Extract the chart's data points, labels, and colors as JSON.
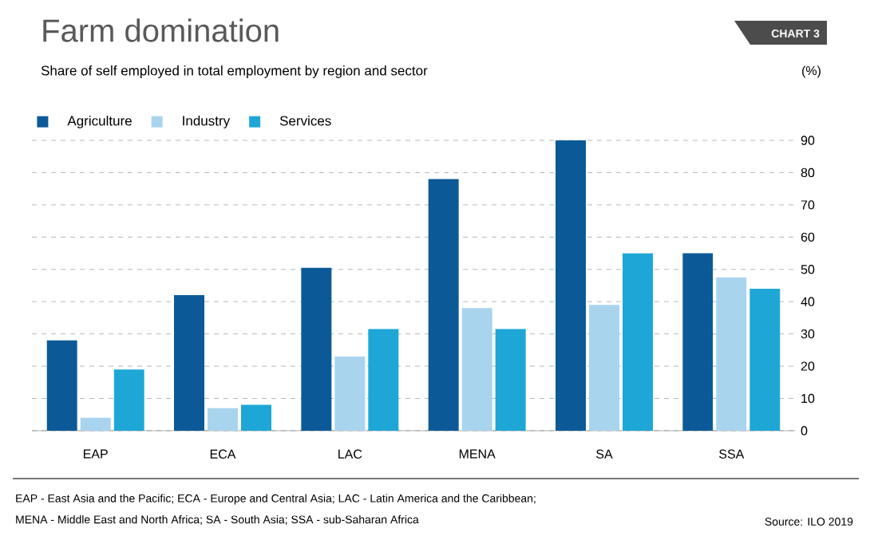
{
  "chart_data": {
    "type": "bar",
    "title": "Farm domination",
    "subtitle": "Share of self employed in total employment by region and sector",
    "ylabel": "(%)",
    "categories": [
      "EAP",
      "ECA",
      "LAC",
      "MENA",
      "SA",
      "SSA"
    ],
    "series": [
      {
        "name": "Agriculture",
        "color": "#0b5a97",
        "values": [
          28,
          42,
          50.5,
          78,
          90,
          55
        ]
      },
      {
        "name": "Industry",
        "color": "#a9d4ee",
        "values": [
          4,
          7,
          23,
          38,
          39,
          47.5
        ]
      },
      {
        "name": "Services",
        "color": "#1ea7d6",
        "values": [
          19,
          8,
          31.5,
          31.5,
          55,
          44
        ]
      }
    ],
    "ylim": [
      0,
      90
    ],
    "yticks": [
      0,
      10,
      20,
      30,
      40,
      50,
      60,
      70,
      80,
      90
    ],
    "grid": "y",
    "legend": "top left",
    "annotations": [
      "CHART 3",
      "EAP - East Asia and the Pacific; ECA - Europe and Central Asia; LAC - Latin America and the Caribbean;",
      "MENA - Middle East and North Africa; SA - South Asia; SSA - sub-Saharan Africa",
      "Source: ILO 2019"
    ]
  }
}
